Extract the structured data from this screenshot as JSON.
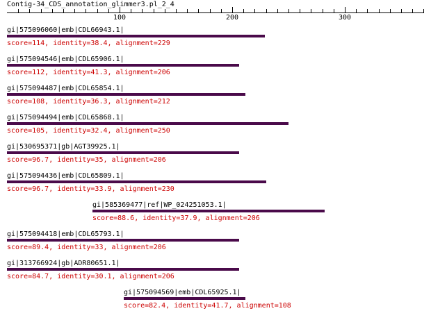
{
  "title": "Contig-34_CDS_annotation_glimmer3.pl_2_4",
  "colors": {
    "bar": "#4a0a4a",
    "stats_text": "#cc0000",
    "label_text": "#000000"
  },
  "axis": {
    "start": 0,
    "end": 370,
    "major_ticks": [
      100,
      200,
      300
    ],
    "tick_labels": [
      "100",
      "200",
      "300"
    ]
  },
  "hits": [
    {
      "label": "gi|575096060|emb|CDL66943.1|",
      "stats": "score=114, identity=38.4, alignment=229",
      "start": 0,
      "end": 229
    },
    {
      "label": "gi|575094546|emb|CDL65906.1|",
      "stats": "score=112, identity=41.3, alignment=206",
      "start": 0,
      "end": 206
    },
    {
      "label": "gi|575094487|emb|CDL65854.1|",
      "stats": "score=108, identity=36.3, alignment=212",
      "start": 0,
      "end": 212
    },
    {
      "label": "gi|575094494|emb|CDL65868.1|",
      "stats": "score=105, identity=32.4, alignment=250",
      "start": 0,
      "end": 250
    },
    {
      "label": "gi|530695371|gb|AGT39925.1|",
      "stats": "score=96.7, identity=35, alignment=206",
      "start": 0,
      "end": 206
    },
    {
      "label": "gi|575094436|emb|CDL65809.1|",
      "stats": "score=96.7, identity=33.9, alignment=230",
      "start": 0,
      "end": 230
    },
    {
      "label": "gi|585369477|ref|WP_024251053.1|",
      "stats": "score=88.6, identity=37.9, alignment=206",
      "start": 76,
      "end": 282
    },
    {
      "label": "gi|575094418|emb|CDL65793.1|",
      "stats": "score=89.4, identity=33, alignment=206",
      "start": 0,
      "end": 206
    },
    {
      "label": "gi|313766924|gb|ADR80651.1|",
      "stats": "score=84.7, identity=30.1, alignment=206",
      "start": 0,
      "end": 206
    },
    {
      "label": "gi|575094569|emb|CDL65925.1|",
      "stats": "score=82.4, identity=41.7, alignment=108",
      "start": 104,
      "end": 212
    }
  ]
}
